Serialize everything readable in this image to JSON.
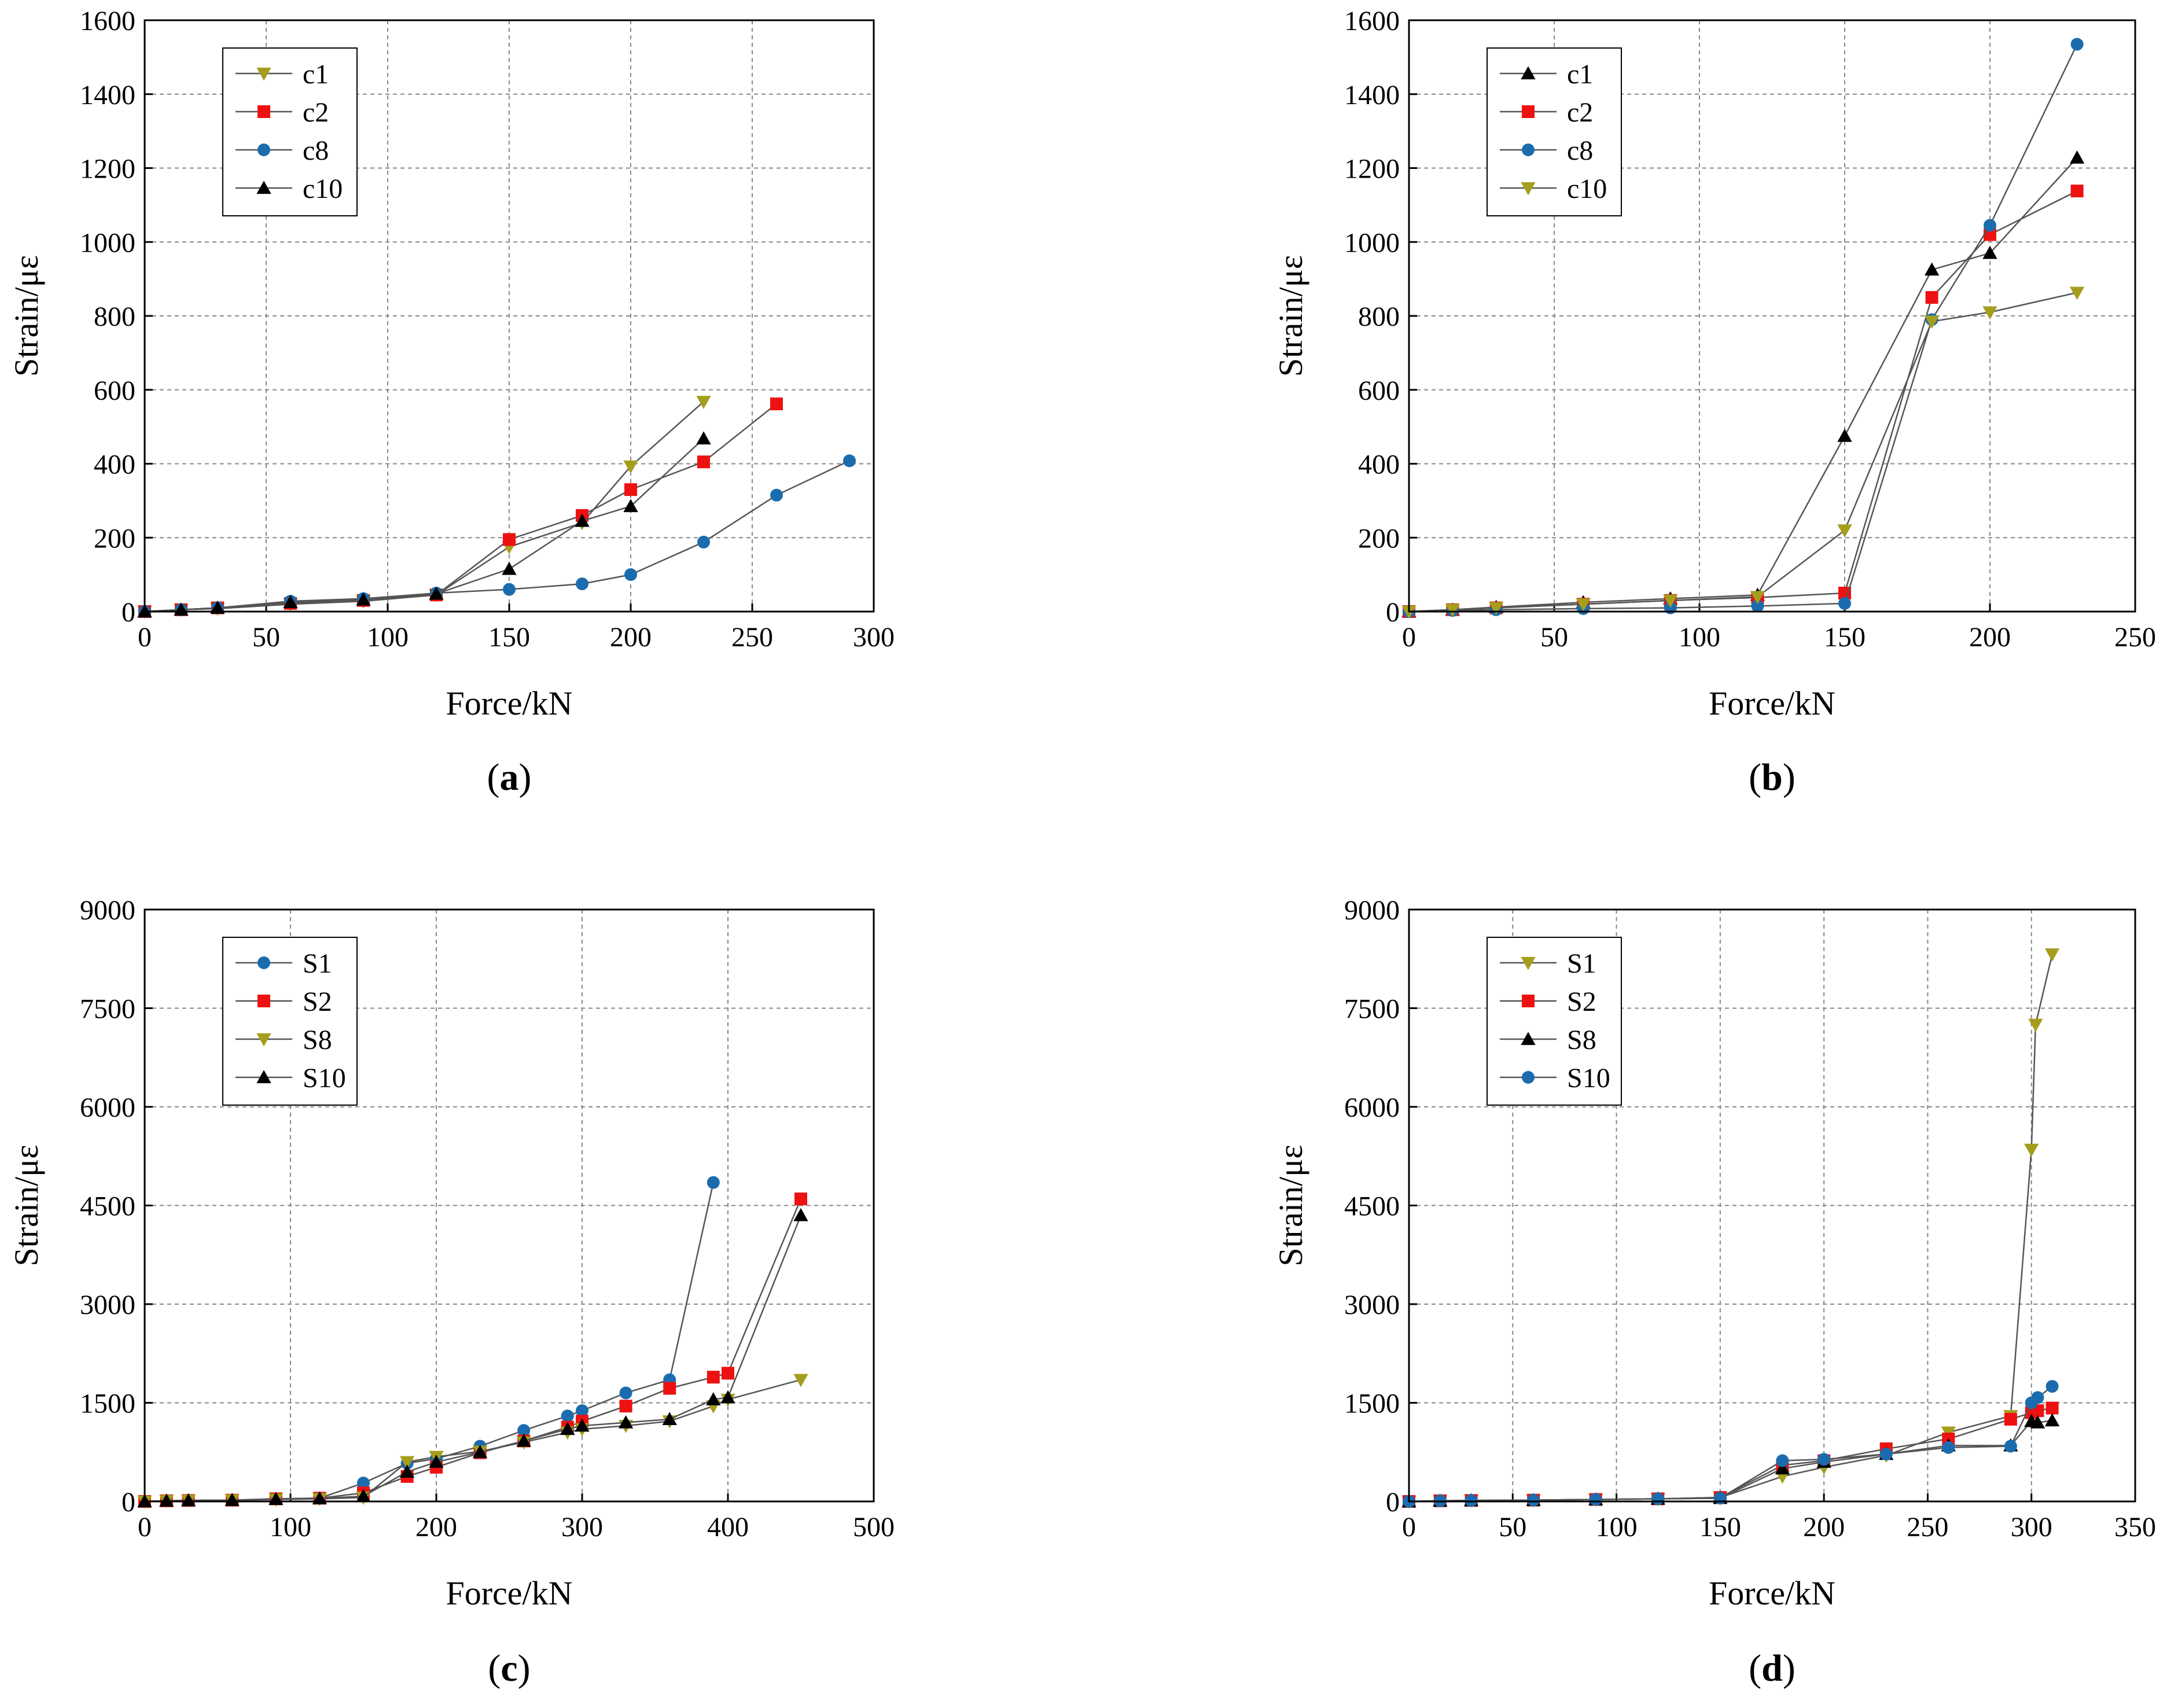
{
  "figure": {
    "panel_letters": [
      "a",
      "b",
      "c",
      "d"
    ]
  },
  "colors": {
    "olive": "#a59e1c",
    "red": "#ee1111",
    "blue": "#1b6cae",
    "black": "#000000",
    "grid": "#888888",
    "line": "#555555"
  },
  "chart_data": [
    {
      "type": "line",
      "panel": "a",
      "xlabel": "Force/kN",
      "ylabel": "Strain/με",
      "xlim": [
        0,
        300
      ],
      "ylim": [
        0,
        1600
      ],
      "xticks": [
        0,
        50,
        100,
        150,
        200,
        250,
        300
      ],
      "yticks": [
        0,
        200,
        400,
        600,
        800,
        1000,
        1200,
        1400,
        1600
      ],
      "grid": true,
      "legend_position": "top-left",
      "series": [
        {
          "name": "c1",
          "marker": "triangle-down",
          "color": "olive",
          "x": [
            0,
            15,
            30,
            60,
            90,
            120,
            150,
            180,
            200,
            230
          ],
          "y": [
            0,
            5,
            8,
            20,
            28,
            45,
            175,
            240,
            393,
            568
          ]
        },
        {
          "name": "c2",
          "marker": "square",
          "color": "red",
          "x": [
            0,
            15,
            30,
            60,
            90,
            120,
            150,
            180,
            200,
            230,
            260
          ],
          "y": [
            0,
            5,
            10,
            22,
            30,
            45,
            195,
            260,
            330,
            405,
            562
          ]
        },
        {
          "name": "c8",
          "marker": "circle",
          "color": "blue",
          "x": [
            0,
            15,
            30,
            60,
            90,
            120,
            150,
            180,
            200,
            230,
            260,
            290
          ],
          "y": [
            0,
            5,
            10,
            28,
            35,
            50,
            60,
            75,
            100,
            188,
            315,
            408
          ]
        },
        {
          "name": "c10",
          "marker": "triangle-up",
          "color": "black",
          "x": [
            0,
            15,
            30,
            60,
            90,
            120,
            150,
            180,
            200,
            230
          ],
          "y": [
            0,
            5,
            10,
            25,
            32,
            48,
            115,
            245,
            285,
            468
          ]
        }
      ]
    },
    {
      "type": "line",
      "panel": "b",
      "xlabel": "Force/kN",
      "ylabel": "Strain/με",
      "xlim": [
        0,
        250
      ],
      "ylim": [
        0,
        1600
      ],
      "xticks": [
        0,
        50,
        100,
        150,
        200,
        250
      ],
      "yticks": [
        0,
        200,
        400,
        600,
        800,
        1000,
        1200,
        1400,
        1600
      ],
      "grid": true,
      "legend_position": "top-left",
      "series": [
        {
          "name": "c1",
          "marker": "triangle-up",
          "color": "black",
          "x": [
            0,
            15,
            30,
            60,
            90,
            120,
            150,
            180,
            200,
            230
          ],
          "y": [
            0,
            5,
            12,
            25,
            35,
            45,
            475,
            925,
            970,
            1228
          ]
        },
        {
          "name": "c2",
          "marker": "square",
          "color": "red",
          "x": [
            0,
            15,
            30,
            60,
            90,
            120,
            150,
            180,
            200,
            230
          ],
          "y": [
            0,
            5,
            10,
            20,
            30,
            38,
            50,
            850,
            1020,
            1138
          ]
        },
        {
          "name": "c8",
          "marker": "circle",
          "color": "blue",
          "x": [
            0,
            15,
            30,
            60,
            90,
            120,
            150,
            180,
            200,
            230
          ],
          "y": [
            0,
            3,
            5,
            8,
            10,
            15,
            22,
            790,
            1045,
            1535
          ]
        },
        {
          "name": "c10",
          "marker": "triangle-down",
          "color": "olive",
          "x": [
            0,
            15,
            30,
            60,
            90,
            120,
            150,
            180,
            200,
            230
          ],
          "y": [
            0,
            5,
            10,
            20,
            30,
            40,
            220,
            785,
            810,
            863
          ]
        }
      ]
    },
    {
      "type": "line",
      "panel": "c",
      "xlabel": "Force/kN",
      "ylabel": "Strain/με",
      "xlim": [
        0,
        500
      ],
      "ylim": [
        0,
        9000
      ],
      "xticks": [
        0,
        100,
        200,
        300,
        400,
        500
      ],
      "yticks": [
        0,
        1500,
        3000,
        4500,
        6000,
        7500,
        9000
      ],
      "grid": true,
      "legend_position": "top-left",
      "series": [
        {
          "name": "S1",
          "marker": "circle",
          "color": "blue",
          "x": [
            0,
            15,
            30,
            60,
            90,
            120,
            150,
            180,
            200,
            230,
            260,
            290,
            300,
            330,
            360,
            390
          ],
          "y": [
            0,
            10,
            15,
            20,
            40,
            50,
            280,
            580,
            650,
            840,
            1080,
            1300,
            1380,
            1650,
            1850,
            4850
          ]
        },
        {
          "name": "S2",
          "marker": "square",
          "color": "red",
          "x": [
            0,
            15,
            30,
            60,
            90,
            120,
            150,
            180,
            200,
            230,
            260,
            290,
            300,
            330,
            360,
            390,
            400,
            450
          ],
          "y": [
            0,
            10,
            15,
            20,
            40,
            50,
            130,
            380,
            520,
            740,
            920,
            1130,
            1220,
            1450,
            1720,
            1890,
            1950,
            4600
          ]
        },
        {
          "name": "S8",
          "marker": "triangle-down",
          "color": "olive",
          "x": [
            0,
            15,
            30,
            60,
            90,
            120,
            150,
            180,
            200,
            230,
            260,
            290,
            300,
            330,
            360,
            390,
            400,
            450
          ],
          "y": [
            0,
            10,
            15,
            20,
            30,
            40,
            60,
            600,
            680,
            760,
            900,
            1050,
            1100,
            1150,
            1220,
            1450,
            1550,
            1850
          ]
        },
        {
          "name": "S10",
          "marker": "triangle-up",
          "color": "black",
          "x": [
            0,
            15,
            30,
            60,
            90,
            120,
            150,
            180,
            200,
            230,
            260,
            290,
            300,
            330,
            360,
            390,
            400,
            450
          ],
          "y": [
            0,
            10,
            15,
            20,
            35,
            45,
            80,
            450,
            600,
            750,
            920,
            1100,
            1150,
            1200,
            1250,
            1550,
            1580,
            4350
          ]
        }
      ]
    },
    {
      "type": "line",
      "panel": "d",
      "xlabel": "Force/kN",
      "ylabel": "Strain/με",
      "xlim": [
        0,
        350
      ],
      "ylim": [
        0,
        9000
      ],
      "xticks": [
        0,
        50,
        100,
        150,
        200,
        250,
        300,
        350
      ],
      "yticks": [
        0,
        1500,
        3000,
        4500,
        6000,
        7500,
        9000
      ],
      "grid": true,
      "legend_position": "top-left",
      "series": [
        {
          "name": "S1",
          "marker": "triangle-down",
          "color": "olive",
          "x": [
            0,
            15,
            30,
            60,
            90,
            120,
            150,
            180,
            200,
            230,
            260,
            290,
            300,
            302,
            310
          ],
          "y": [
            0,
            10,
            15,
            20,
            30,
            40,
            60,
            380,
            520,
            700,
            1050,
            1300,
            5350,
            7250,
            8320
          ]
        },
        {
          "name": "S2",
          "marker": "square",
          "color": "red",
          "x": [
            0,
            15,
            30,
            60,
            90,
            120,
            150,
            180,
            200,
            230,
            260,
            290,
            300,
            303,
            310
          ],
          "y": [
            0,
            10,
            15,
            20,
            30,
            40,
            60,
            550,
            620,
            800,
            950,
            1250,
            1350,
            1380,
            1420
          ]
        },
        {
          "name": "S8",
          "marker": "triangle-up",
          "color": "black",
          "x": [
            0,
            15,
            30,
            60,
            90,
            120,
            150,
            180,
            200,
            230,
            260,
            290,
            300,
            303,
            310
          ],
          "y": [
            0,
            10,
            15,
            20,
            30,
            40,
            50,
            500,
            600,
            720,
            850,
            850,
            1220,
            1200,
            1230
          ]
        },
        {
          "name": "S10",
          "marker": "circle",
          "color": "blue",
          "x": [
            0,
            15,
            30,
            60,
            90,
            120,
            150,
            180,
            200,
            230,
            260,
            290,
            300,
            303,
            310
          ],
          "y": [
            0,
            10,
            15,
            20,
            30,
            40,
            50,
            620,
            640,
            720,
            820,
            840,
            1500,
            1580,
            1750
          ]
        }
      ]
    }
  ]
}
